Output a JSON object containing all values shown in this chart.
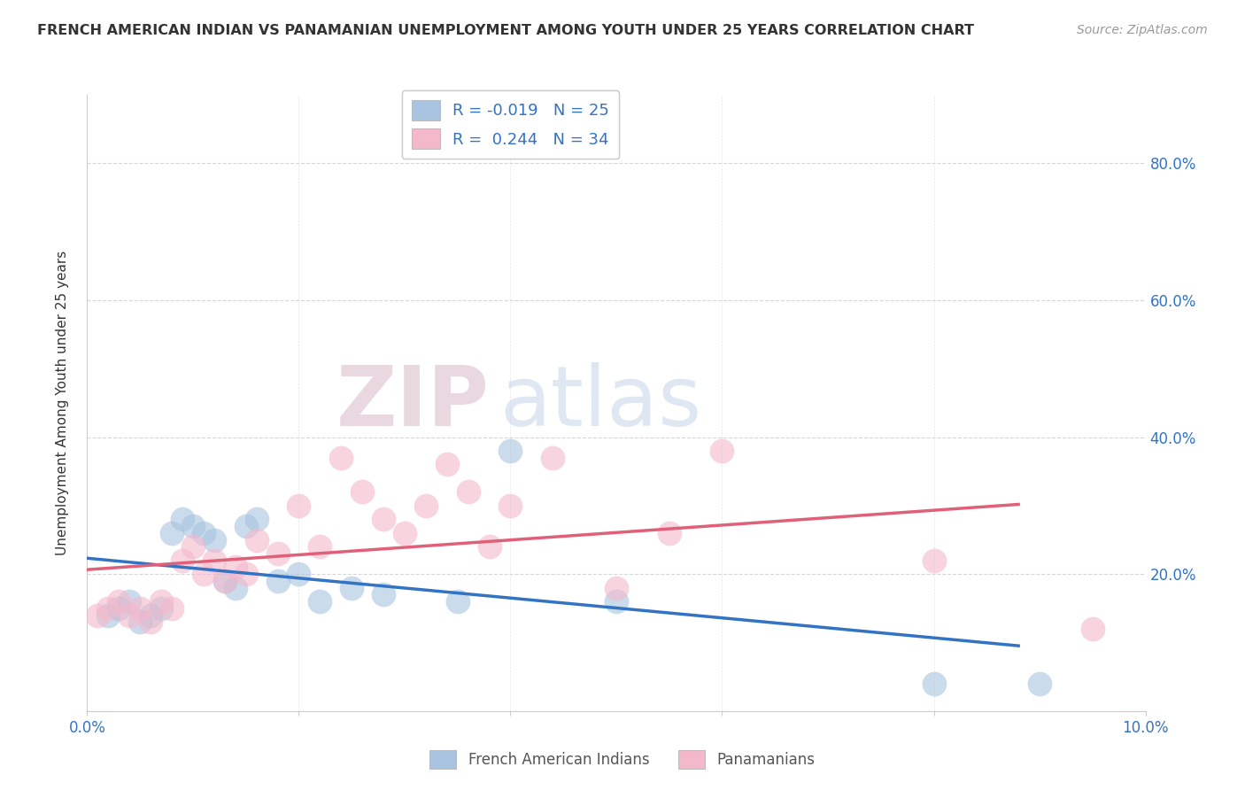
{
  "title": "FRENCH AMERICAN INDIAN VS PANAMANIAN UNEMPLOYMENT AMONG YOUTH UNDER 25 YEARS CORRELATION CHART",
  "source": "Source: ZipAtlas.com",
  "ylabel": "Unemployment Among Youth under 25 years",
  "xlim": [
    0.0,
    0.1
  ],
  "ylim": [
    0.0,
    0.9
  ],
  "xticks": [
    0.0,
    0.02,
    0.04,
    0.06,
    0.08,
    0.1
  ],
  "yticks": [
    0.0,
    0.2,
    0.4,
    0.6,
    0.8
  ],
  "ytick_labels_right": [
    "",
    "20.0%",
    "40.0%",
    "60.0%",
    "80.0%"
  ],
  "xtick_labels": [
    "0.0%",
    "",
    "",
    "",
    "",
    "10.0%"
  ],
  "blue_R": -0.019,
  "blue_N": 25,
  "pink_R": 0.244,
  "pink_N": 34,
  "blue_color": "#a8c4e0",
  "blue_line_color": "#3373c4",
  "pink_color": "#f4b8cb",
  "pink_line_color": "#e0607a",
  "blue_x": [
    0.002,
    0.003,
    0.004,
    0.005,
    0.006,
    0.007,
    0.008,
    0.009,
    0.01,
    0.011,
    0.012,
    0.013,
    0.014,
    0.015,
    0.016,
    0.018,
    0.02,
    0.022,
    0.025,
    0.028,
    0.035,
    0.04,
    0.05,
    0.08,
    0.09
  ],
  "blue_y": [
    0.14,
    0.15,
    0.16,
    0.13,
    0.14,
    0.15,
    0.26,
    0.28,
    0.27,
    0.26,
    0.25,
    0.19,
    0.18,
    0.27,
    0.28,
    0.19,
    0.2,
    0.16,
    0.18,
    0.17,
    0.16,
    0.38,
    0.16,
    0.04,
    0.04
  ],
  "pink_x": [
    0.001,
    0.002,
    0.003,
    0.004,
    0.005,
    0.006,
    0.007,
    0.008,
    0.009,
    0.01,
    0.011,
    0.012,
    0.013,
    0.014,
    0.015,
    0.016,
    0.018,
    0.02,
    0.022,
    0.024,
    0.026,
    0.028,
    0.03,
    0.032,
    0.034,
    0.036,
    0.038,
    0.04,
    0.044,
    0.05,
    0.055,
    0.06,
    0.08,
    0.095
  ],
  "pink_y": [
    0.14,
    0.15,
    0.16,
    0.14,
    0.15,
    0.13,
    0.16,
    0.15,
    0.22,
    0.24,
    0.2,
    0.22,
    0.19,
    0.21,
    0.2,
    0.25,
    0.23,
    0.3,
    0.24,
    0.37,
    0.32,
    0.28,
    0.26,
    0.3,
    0.36,
    0.32,
    0.24,
    0.3,
    0.37,
    0.18,
    0.26,
    0.38,
    0.22,
    0.12
  ],
  "watermark_text": "ZIP",
  "watermark_text2": "atlas"
}
